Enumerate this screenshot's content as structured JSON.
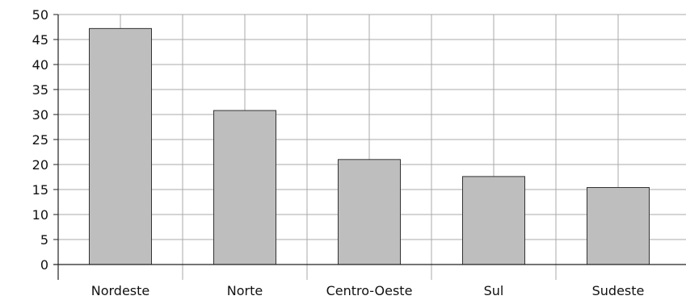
{
  "chart_data": {
    "type": "bar",
    "title": "",
    "xlabel": "",
    "ylabel": "",
    "categories": [
      "Nordeste",
      "Norte",
      "Centro-Oeste",
      "Sul",
      "Sudeste"
    ],
    "values": [
      47.2,
      30.8,
      21.0,
      17.6,
      15.4
    ],
    "ylim": [
      0,
      50
    ],
    "yticks": [
      "0",
      "5",
      "10",
      "15",
      "20",
      "25",
      "30",
      "35",
      "40",
      "45",
      "50"
    ],
    "grid": true,
    "legend": "none",
    "colors": {
      "bar_fill": "#bebebe",
      "bar_stroke": "#333333",
      "grid": "#a8a8a8",
      "axis": "#222222"
    }
  }
}
